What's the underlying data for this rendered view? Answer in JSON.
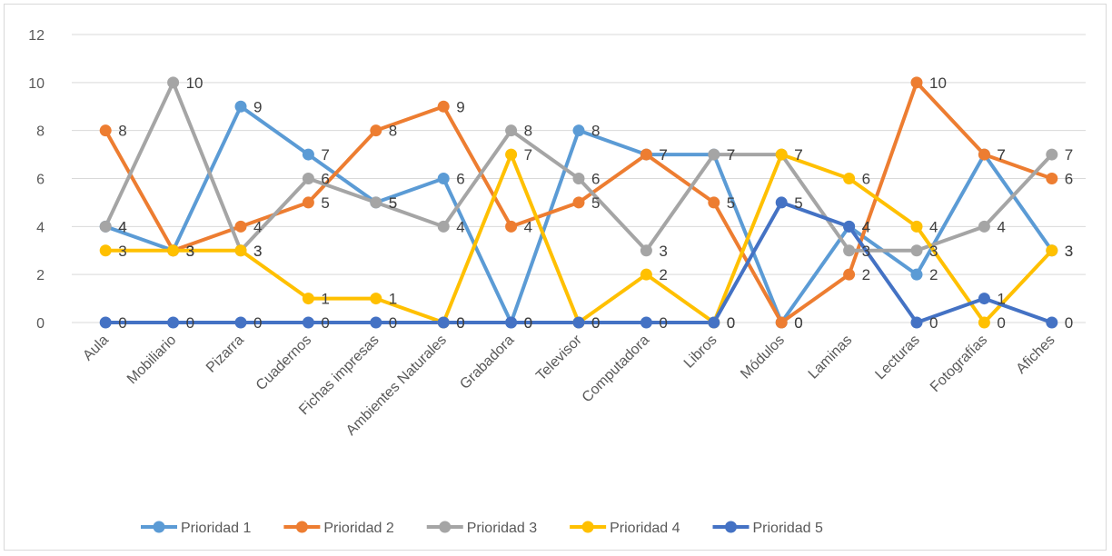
{
  "chart_data": {
    "type": "line",
    "categories": [
      "Aula",
      "Mobiliario",
      "Pizarra",
      "Cuadernos",
      "Fichas impresas",
      "Ambientes Naturales",
      "Grabadora",
      "Televisor",
      "Computadora",
      "Libros",
      "Módulos",
      "Laminas",
      "Lecturas",
      "Fotografías",
      "Afiches"
    ],
    "y_ticks": [
      "0",
      "2",
      "4",
      "6",
      "8",
      "10",
      "12"
    ],
    "ylim": [
      0,
      12
    ],
    "grid": true,
    "legend_position": "bottom",
    "series": [
      {
        "name": "Prioridad 1",
        "color": "#5B9BD5",
        "values": [
          4,
          3,
          9,
          7,
          5,
          6,
          0,
          8,
          7,
          7,
          0,
          4,
          2,
          7,
          3
        ]
      },
      {
        "name": "Prioridad 2",
        "color": "#ED7D31",
        "values": [
          8,
          3,
          4,
          5,
          8,
          9,
          4,
          5,
          7,
          5,
          0,
          2,
          10,
          7,
          6
        ]
      },
      {
        "name": "Prioridad 3",
        "color": "#A5A5A5",
        "values": [
          4,
          10,
          3,
          6,
          5,
          4,
          8,
          6,
          3,
          7,
          7,
          3,
          3,
          4,
          7
        ]
      },
      {
        "name": "Prioridad 4",
        "color": "#FFC000",
        "values": [
          3,
          3,
          3,
          1,
          1,
          0,
          7,
          0,
          2,
          0,
          7,
          6,
          4,
          0,
          3
        ]
      },
      {
        "name": "Prioridad 5",
        "color": "#4472C4",
        "values": [
          0,
          0,
          0,
          0,
          0,
          0,
          0,
          0,
          0,
          0,
          5,
          4,
          0,
          1,
          0
        ]
      }
    ]
  }
}
